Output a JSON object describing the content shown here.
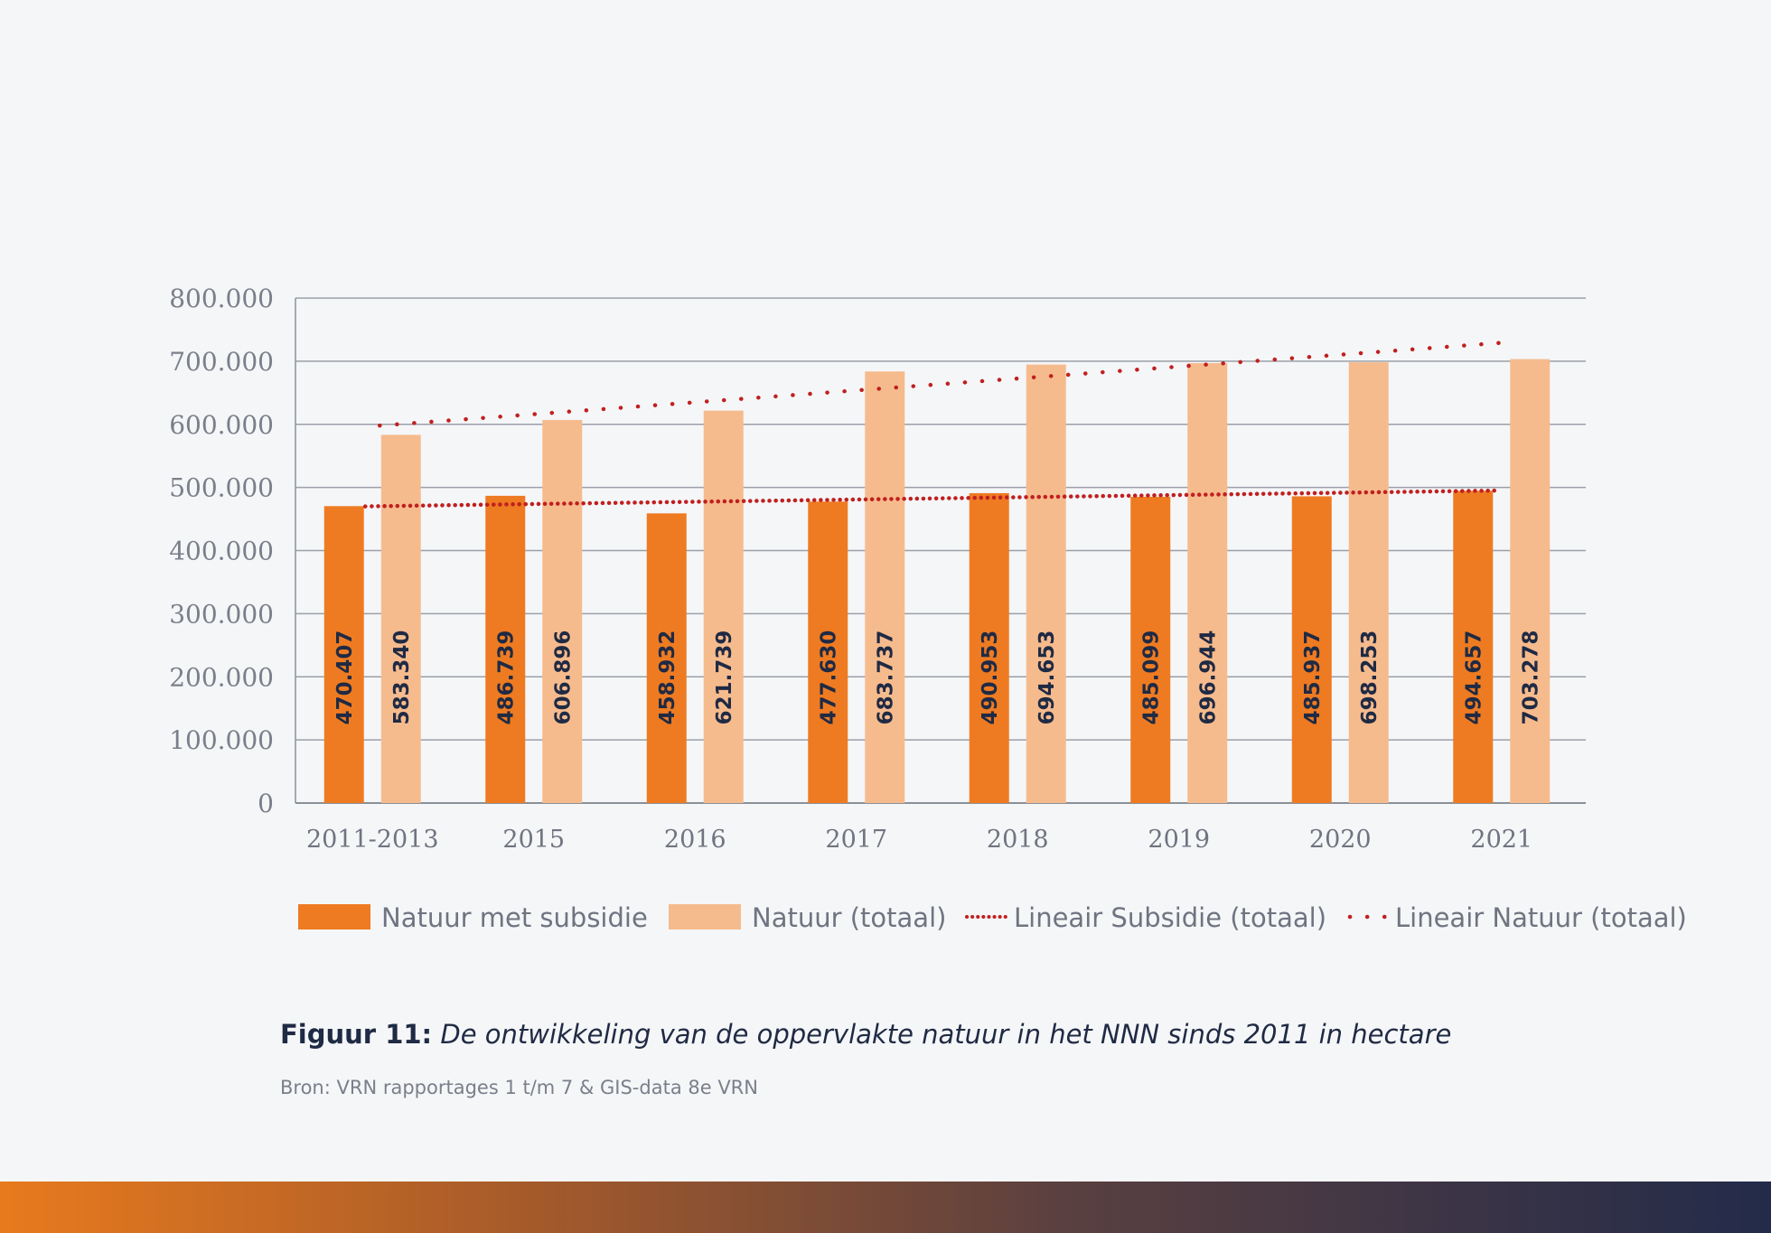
{
  "chart_data": {
    "type": "bar",
    "categories": [
      "2011-2013",
      "2015",
      "2016",
      "2017",
      "2018",
      "2019",
      "2020",
      "2021"
    ],
    "series": [
      {
        "name": "Natuur met subsidie",
        "color": "#ee7b22",
        "values": [
          470407,
          486739,
          458932,
          477630,
          490953,
          485099,
          485937,
          494657
        ],
        "labels": [
          "470.407",
          "486.739",
          "458.932",
          "477.630",
          "490.953",
          "485.099",
          "485.937",
          "494.657"
        ]
      },
      {
        "name": "Natuur (totaal)",
        "color": "#f6bb8d",
        "values": [
          583340,
          606896,
          621739,
          683737,
          694653,
          696944,
          698253,
          703278
        ],
        "labels": [
          "583.340",
          "606.896",
          "621.739",
          "683.737",
          "694.653",
          "696.944",
          "698.253",
          "703.278"
        ]
      }
    ],
    "trendlines": [
      {
        "name": "Lineair Subsidie (totaal)",
        "color": "#c0201f",
        "start": 470000,
        "end": 495000,
        "style": "dense-dots"
      },
      {
        "name": "Lineair Natuur (totaal)",
        "color": "#c0201f",
        "start": 598000,
        "end": 730000,
        "style": "sparse-dots"
      }
    ],
    "ylim": [
      0,
      800000
    ],
    "yticks": [
      0,
      100000,
      200000,
      300000,
      400000,
      500000,
      600000,
      700000,
      800000
    ],
    "ytick_labels": [
      "0",
      "100.000",
      "200.000",
      "300.000",
      "400.000",
      "500.000",
      "600.000",
      "700.000",
      "800.000"
    ],
    "grid": true,
    "legend_position": "bottom",
    "title": "",
    "xlabel": "",
    "ylabel": ""
  },
  "caption": {
    "lead": "Figuur 11:",
    "text": "De ontwikkeling van de oppervlakte natuur in het NNN sinds 2011 in hectare"
  },
  "source": "Bron: VRN rapportages 1 t/m 7 & GIS-data 8e VRN"
}
